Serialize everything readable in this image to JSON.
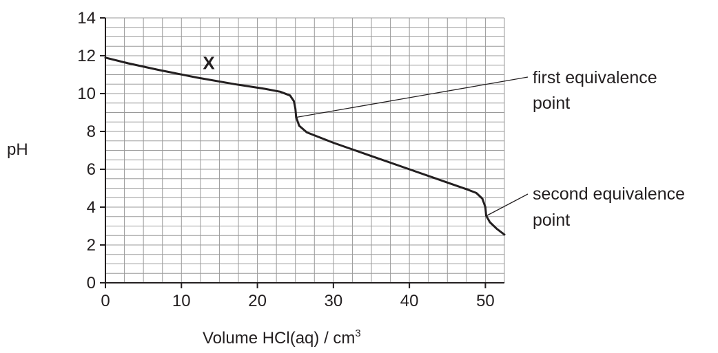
{
  "chart_data": {
    "type": "line",
    "title": "",
    "xlabel": "Volume HCl(aq) / cm",
    "xlabel_superscript": "3",
    "ylabel": "pH",
    "xlim": [
      0,
      52.5
    ],
    "ylim": [
      0,
      14
    ],
    "x_ticks": [
      "0",
      "10",
      "20",
      "30",
      "40",
      "50"
    ],
    "y_ticks": [
      "0",
      "2",
      "4",
      "6",
      "8",
      "10",
      "12",
      "14"
    ],
    "grid": true,
    "series": [
      {
        "x": [
          0,
          3,
          7,
          12,
          17,
          21,
          23,
          24.3,
          24.8,
          25,
          25.1,
          25.5,
          26.5,
          30,
          35,
          40,
          45,
          47.5,
          48.8,
          49.6,
          50,
          50.1,
          50.6,
          51.5,
          52.5
        ],
        "y": [
          11.9,
          11.6,
          11.25,
          10.85,
          10.5,
          10.25,
          10.1,
          9.9,
          9.6,
          9.2,
          8.75,
          8.3,
          7.95,
          7.4,
          6.7,
          6.0,
          5.3,
          4.95,
          4.75,
          4.45,
          4.0,
          3.55,
          3.2,
          2.85,
          2.55
        ]
      }
    ],
    "annotations": [
      {
        "text": "X",
        "x": 13.6,
        "y": 11.3
      },
      {
        "text": "first equivalence",
        "text_line2": "point",
        "target_x": 25,
        "target_y": 8.75
      },
      {
        "text": "second equivalence",
        "text_line2": "point",
        "target_x": 50,
        "target_y": 3.55
      }
    ]
  }
}
